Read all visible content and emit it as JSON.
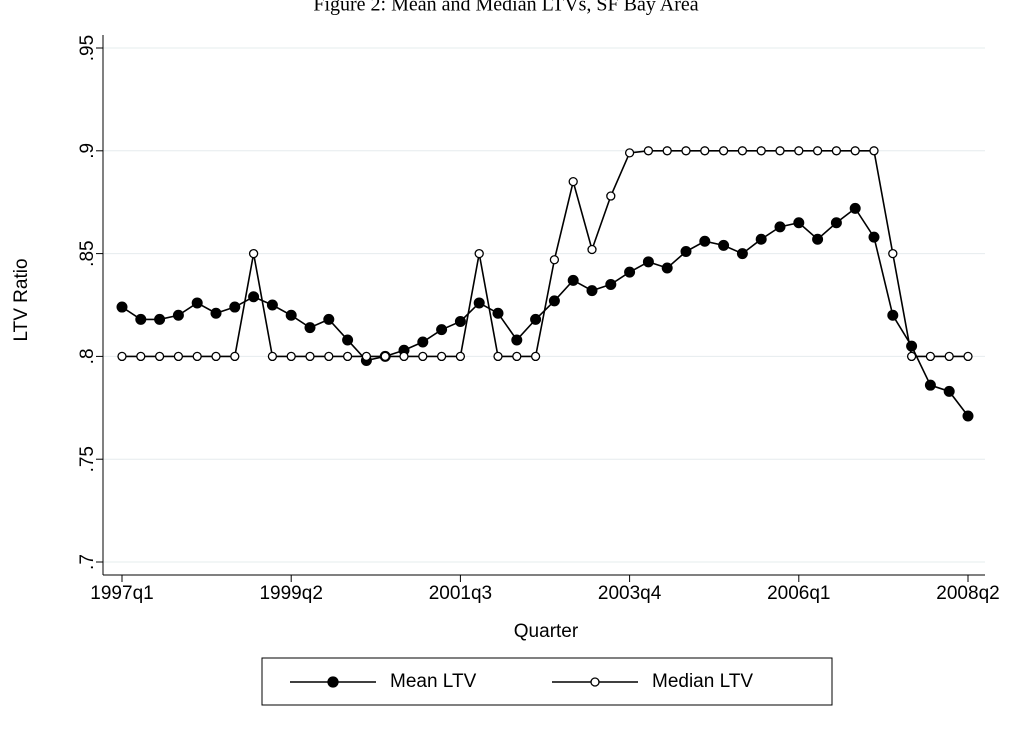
{
  "chart_data": {
    "type": "line",
    "title": "Figure 2: Mean and Median LTVs, SF Bay Area",
    "x_label": "Quarter",
    "y_label": "LTV Ratio",
    "categories": [
      "1997q1",
      null,
      null,
      null,
      null,
      null,
      null,
      null,
      null,
      "1999q2",
      null,
      null,
      null,
      null,
      null,
      null,
      null,
      null,
      "2001q3",
      null,
      null,
      null,
      null,
      null,
      null,
      null,
      null,
      "2003q4",
      null,
      null,
      null,
      null,
      null,
      null,
      null,
      null,
      "2006q1",
      null,
      null,
      null,
      null,
      null,
      null,
      null,
      null,
      "2008q2"
    ],
    "series": [
      {
        "name": "Mean LTV",
        "color": "#000000",
        "marker": "filled",
        "values": [
          0.824,
          0.818,
          0.818,
          0.82,
          0.826,
          0.821,
          0.824,
          0.829,
          0.825,
          0.82,
          0.814,
          0.818,
          0.808,
          0.798,
          0.8,
          0.803,
          0.807,
          0.813,
          0.817,
          0.826,
          0.821,
          0.808,
          0.818,
          0.827,
          0.837,
          0.832,
          0.835,
          0.841,
          0.846,
          0.843,
          0.851,
          0.856,
          0.854,
          0.85,
          0.857,
          0.863,
          0.865,
          0.857,
          0.865,
          0.872,
          0.858,
          0.82,
          0.805,
          0.786,
          0.783,
          0.771
        ]
      },
      {
        "name": "Median LTV",
        "color": "#000000",
        "marker": "hollow",
        "values": [
          0.8,
          0.8,
          0.8,
          0.8,
          0.8,
          0.8,
          0.8,
          0.85,
          0.8,
          0.8,
          0.8,
          0.8,
          0.8,
          0.8,
          0.8,
          0.8,
          0.8,
          0.8,
          0.8,
          0.85,
          0.8,
          0.8,
          0.8,
          0.847,
          0.885,
          0.852,
          0.878,
          0.899,
          0.9,
          0.9,
          0.9,
          0.9,
          0.9,
          0.9,
          0.9,
          0.9,
          0.9,
          0.9,
          0.9,
          0.9,
          0.9,
          0.85,
          0.8,
          0.8,
          0.8,
          0.8
        ]
      }
    ],
    "ylim": [
      0.7,
      0.95
    ],
    "yticks": [
      {
        "value": 0.7,
        "label": ".7"
      },
      {
        "value": 0.75,
        "label": ".75"
      },
      {
        "value": 0.8,
        "label": ".8"
      },
      {
        "value": 0.85,
        "label": ".85"
      },
      {
        "value": 0.9,
        "label": ".9"
      },
      {
        "value": 0.95,
        "label": ".95"
      }
    ],
    "grid": true,
    "legend": "bottom"
  }
}
